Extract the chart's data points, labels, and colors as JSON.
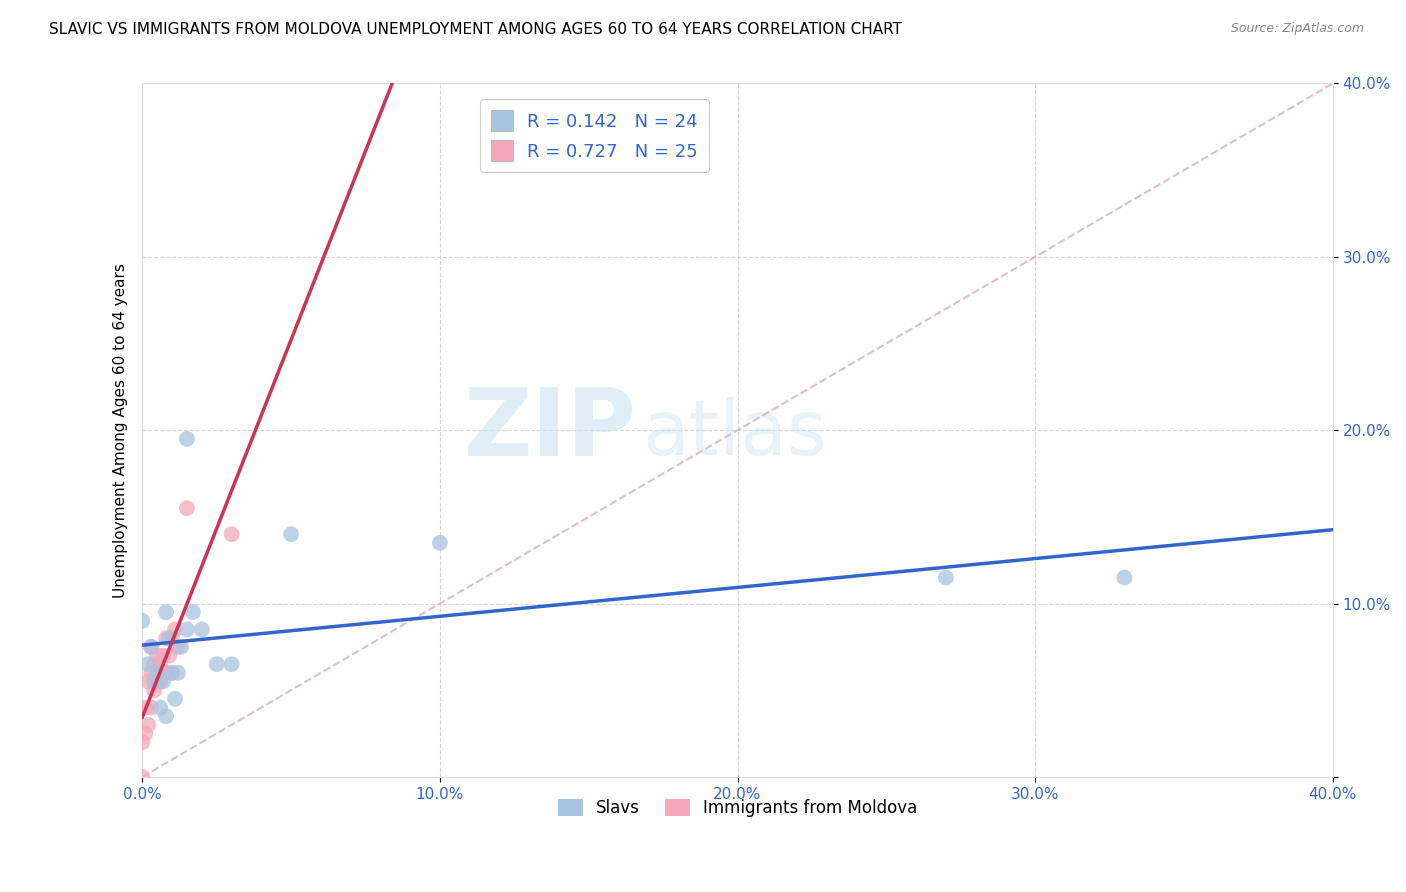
{
  "title": "SLAVIC VS IMMIGRANTS FROM MOLDOVA UNEMPLOYMENT AMONG AGES 60 TO 64 YEARS CORRELATION CHART",
  "source": "Source: ZipAtlas.com",
  "ylabel": "Unemployment Among Ages 60 to 64 years",
  "xlabel_slavs": "Slavs",
  "xlabel_moldova": "Immigrants from Moldova",
  "xlim": [
    0.0,
    0.4
  ],
  "ylim": [
    0.0,
    0.4
  ],
  "xticks": [
    0.0,
    0.1,
    0.2,
    0.3,
    0.4
  ],
  "yticks": [
    0.0,
    0.1,
    0.2,
    0.3,
    0.4
  ],
  "xtick_labels": [
    "0.0%",
    "10.0%",
    "20.0%",
    "30.0%",
    "40.0%"
  ],
  "ytick_labels": [
    "",
    "10.0%",
    "20.0%",
    "30.0%",
    "40.0%"
  ],
  "slavs_R": "0.142",
  "slavs_N": "24",
  "moldova_R": "0.727",
  "moldova_N": "25",
  "slavs_color": "#a8c4e0",
  "moldova_color": "#f4a8b8",
  "slavs_line_color": "#3366cc",
  "moldova_line_color": "#cc3355",
  "diagonal_color": "#ddb8c8",
  "background_color": "#ffffff",
  "grid_color": "#cccccc",
  "slavs_x": [
    0.0,
    0.002,
    0.003,
    0.004,
    0.005,
    0.006,
    0.007,
    0.008,
    0.009,
    0.01,
    0.011,
    0.012,
    0.013,
    0.015,
    0.017,
    0.02,
    0.025,
    0.03,
    0.05,
    0.1,
    0.27,
    0.33,
    0.008,
    0.015
  ],
  "slavs_y": [
    0.09,
    0.065,
    0.075,
    0.055,
    0.06,
    0.04,
    0.055,
    0.035,
    0.08,
    0.06,
    0.045,
    0.06,
    0.075,
    0.085,
    0.095,
    0.085,
    0.065,
    0.065,
    0.14,
    0.135,
    0.115,
    0.115,
    0.095,
    0.195
  ],
  "moldova_x": [
    0.0,
    0.0,
    0.001,
    0.001,
    0.002,
    0.002,
    0.003,
    0.003,
    0.003,
    0.004,
    0.004,
    0.005,
    0.005,
    0.006,
    0.006,
    0.007,
    0.008,
    0.008,
    0.009,
    0.01,
    0.01,
    0.011,
    0.012,
    0.015,
    0.03
  ],
  "moldova_y": [
    0.0,
    0.02,
    0.025,
    0.04,
    0.03,
    0.055,
    0.04,
    0.06,
    0.075,
    0.05,
    0.065,
    0.055,
    0.07,
    0.055,
    0.065,
    0.07,
    0.06,
    0.08,
    0.07,
    0.08,
    0.06,
    0.085,
    0.075,
    0.155,
    0.14
  ],
  "watermark_zip": "ZIP",
  "watermark_atlas": "atlas",
  "title_fontsize": 11,
  "axis_label_fontsize": 11,
  "tick_fontsize": 11,
  "legend_fontsize": 13
}
